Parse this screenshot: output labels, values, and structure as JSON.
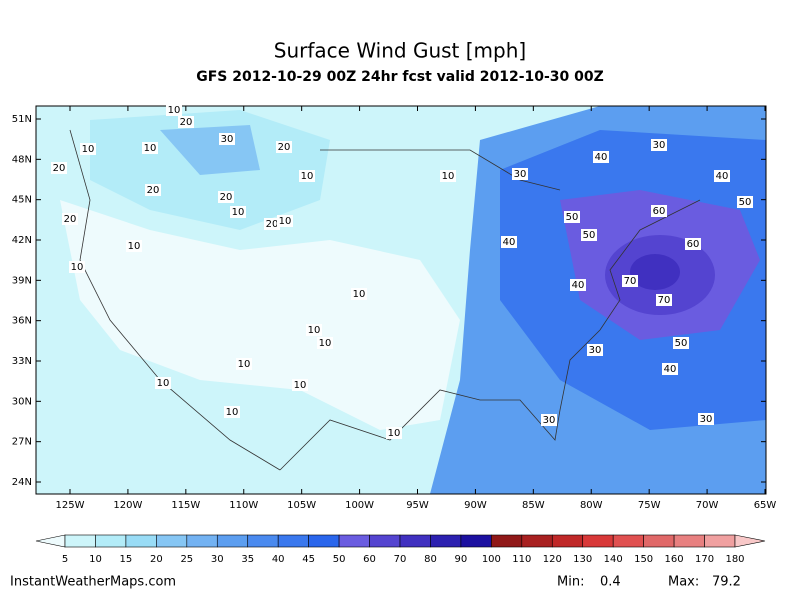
{
  "title": "Surface Wind Gust [mph]",
  "subtitle": "GFS 2012-10-29 00Z 24hr fcst valid 2012-10-30 00Z",
  "lat_ticks": [
    {
      "value": 51,
      "label": "51N"
    },
    {
      "value": 48,
      "label": "48N"
    },
    {
      "value": 45,
      "label": "45N"
    },
    {
      "value": 42,
      "label": "42N"
    },
    {
      "value": 39,
      "label": "39N"
    },
    {
      "value": 36,
      "label": "36N"
    },
    {
      "value": 33,
      "label": "33N"
    },
    {
      "value": 30,
      "label": "30N"
    },
    {
      "value": 27,
      "label": "27N"
    },
    {
      "value": 24,
      "label": "24N"
    }
  ],
  "lon_ticks": [
    {
      "value": -125,
      "label": "125W"
    },
    {
      "value": -120,
      "label": "120W"
    },
    {
      "value": -115,
      "label": "115W"
    },
    {
      "value": -110,
      "label": "110W"
    },
    {
      "value": -105,
      "label": "105W"
    },
    {
      "value": -100,
      "label": "100W"
    },
    {
      "value": -95,
      "label": "95W"
    },
    {
      "value": -90,
      "label": "90W"
    },
    {
      "value": -85,
      "label": "85W"
    },
    {
      "value": -80,
      "label": "80W"
    },
    {
      "value": -75,
      "label": "75W"
    },
    {
      "value": -70,
      "label": "70W"
    },
    {
      "value": -65,
      "label": "65W"
    }
  ],
  "colorbar": {
    "levels": [
      5,
      10,
      15,
      20,
      25,
      30,
      35,
      40,
      45,
      50,
      60,
      70,
      80,
      90,
      100,
      110,
      120,
      130,
      140,
      150,
      160,
      170,
      180
    ],
    "colors": [
      "#eefbfd",
      "#cdf5fa",
      "#b3ecf8",
      "#99dcf6",
      "#86c6f4",
      "#73b2f2",
      "#5c9ef0",
      "#4a8aef",
      "#3a78ee",
      "#2a66ec",
      "#6a5ce0",
      "#5444d0",
      "#4030c0",
      "#2c20b0",
      "#1c10a0",
      "#901818",
      "#a82020",
      "#c02828",
      "#d83838",
      "#e05050",
      "#e06868",
      "#e88080",
      "#f0a0a0",
      "#f8c8c8"
    ]
  },
  "contour_labels": [
    10,
    20,
    30,
    20,
    10,
    10,
    20,
    20,
    20,
    10,
    20,
    10,
    10,
    20,
    10,
    10,
    10,
    10,
    10,
    10,
    10,
    10,
    10,
    10,
    10,
    30,
    40,
    30,
    40,
    50,
    60,
    50,
    50,
    40,
    60,
    40,
    70,
    70,
    50,
    30,
    40,
    30,
    30
  ],
  "footer": {
    "site": "InstantWeatherMaps.com",
    "min_label": "Min:",
    "min_value": 0.4,
    "max_label": "Max:",
    "max_value": 79.2
  }
}
